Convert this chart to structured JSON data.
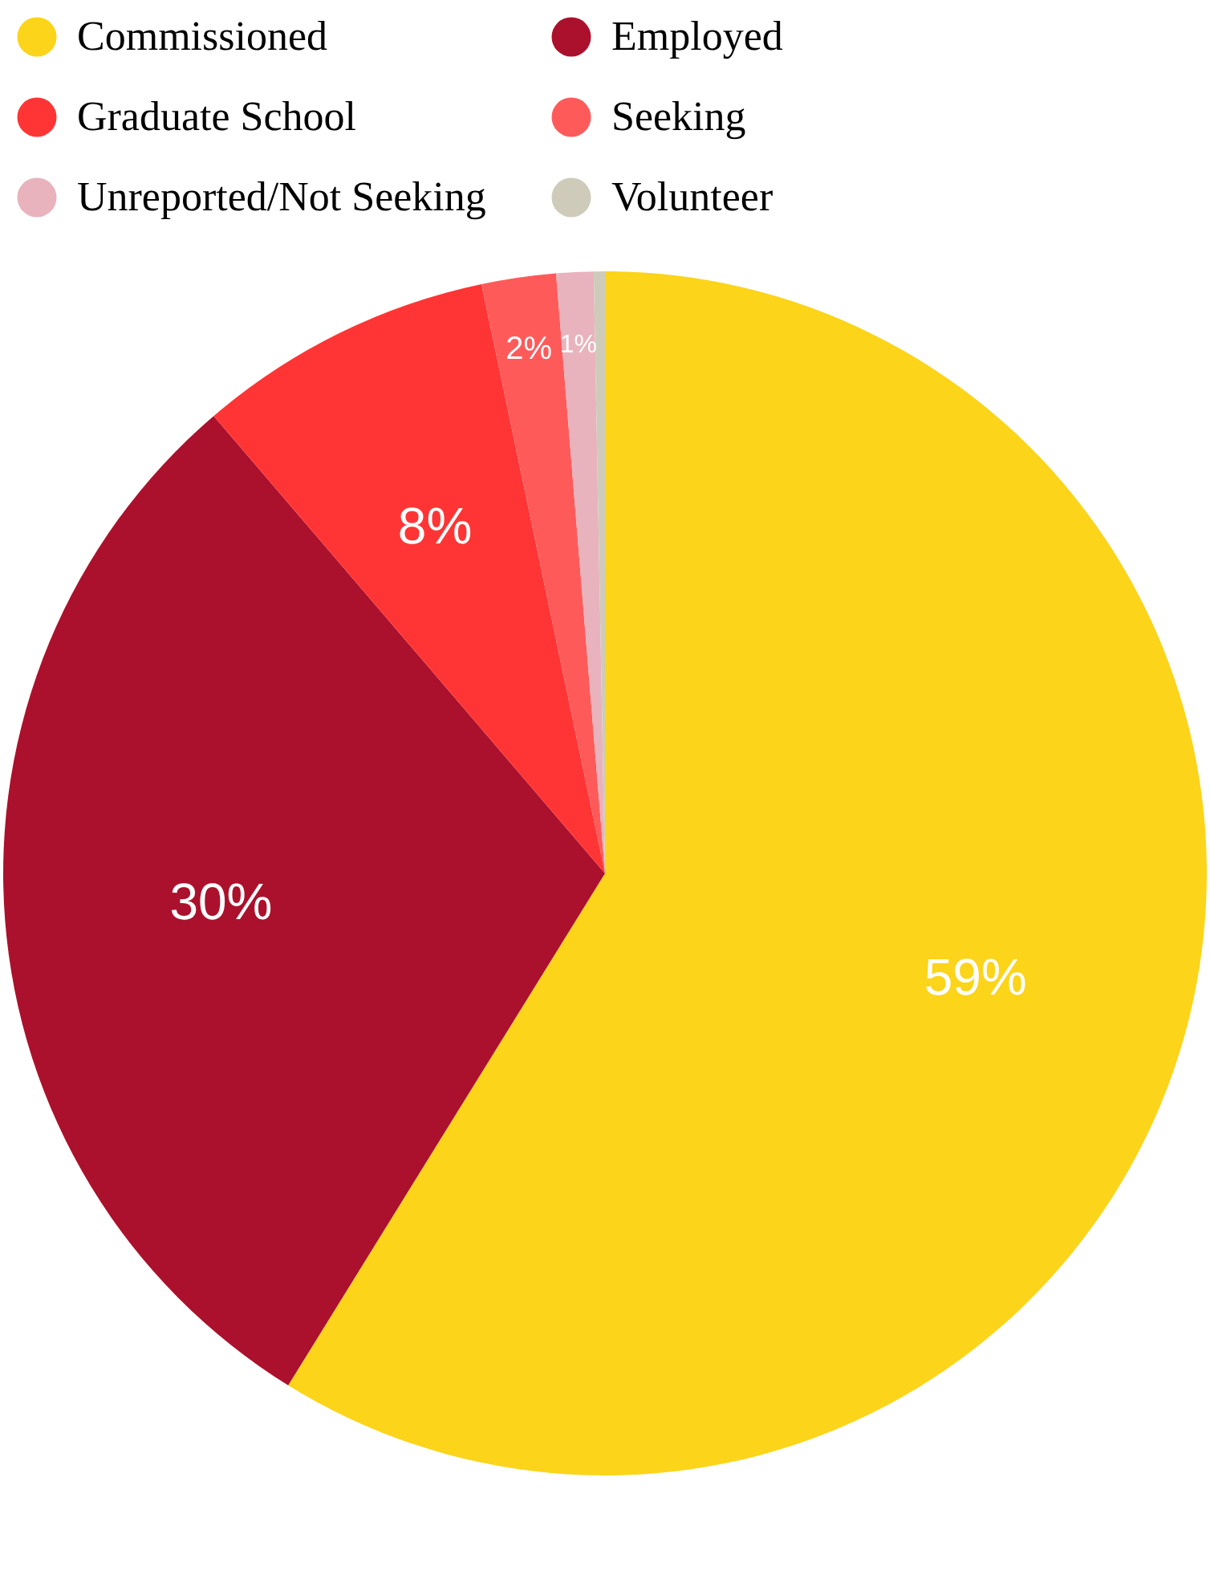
{
  "chart_data": {
    "type": "pie",
    "categories": [
      "Commissioned",
      "Employed",
      "Graduate School",
      "Seeking",
      "Unreported/Not Seeking",
      "Volunteer"
    ],
    "values": [
      59,
      30,
      8,
      2,
      1,
      0.3
    ],
    "colors": [
      "#fcd419",
      "#ab112c",
      "#ff3535",
      "#ff5a5a",
      "#e8b3bc",
      "#cfcbbb"
    ],
    "value_labels": [
      "59%",
      "30%",
      "8%",
      "2%",
      "1%",
      null
    ],
    "legend": "top"
  }
}
